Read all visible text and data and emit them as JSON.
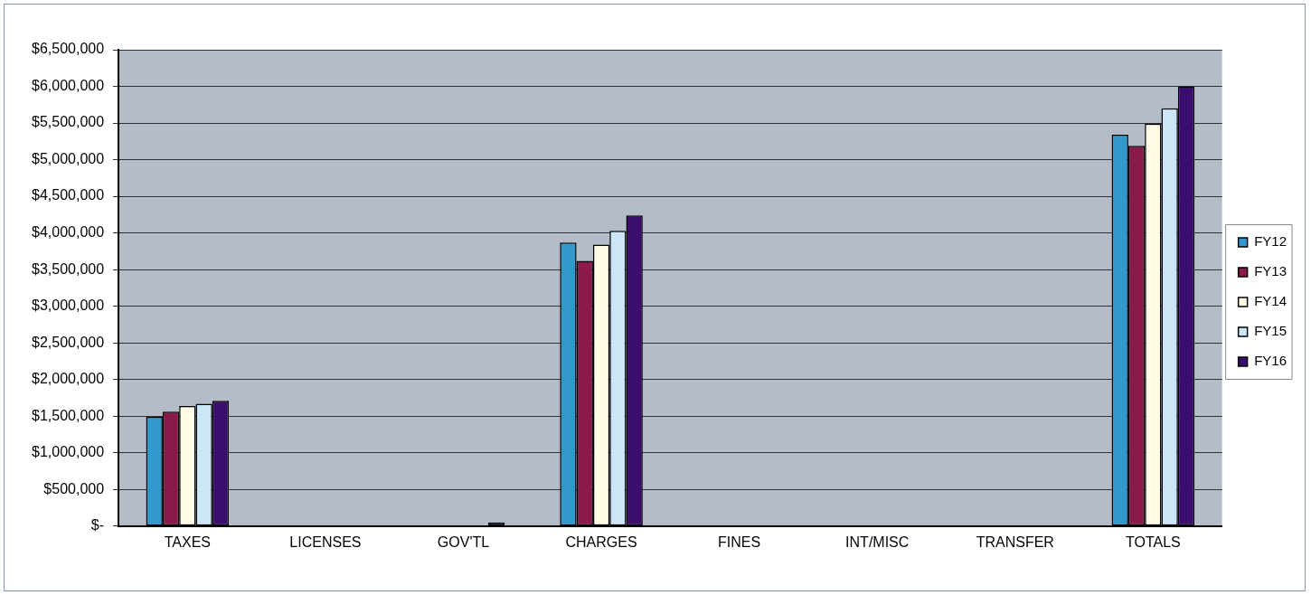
{
  "chart_data": {
    "type": "bar",
    "categories": [
      "TAXES",
      "LICENSES",
      "GOV'TL",
      "CHARGES",
      "FINES",
      "INT/MISC",
      "TRANSFER",
      "TOTALS"
    ],
    "series": [
      {
        "name": "FY12",
        "color": "#3399cc",
        "values": [
          1490000,
          0,
          0,
          3870000,
          0,
          0,
          0,
          5340000
        ]
      },
      {
        "name": "FY13",
        "color": "#8b1a4a",
        "values": [
          1560000,
          0,
          0,
          3620000,
          0,
          0,
          0,
          5190000
        ]
      },
      {
        "name": "FY14",
        "color": "#fffbe6",
        "values": [
          1640000,
          0,
          0,
          3840000,
          0,
          0,
          0,
          5490000
        ]
      },
      {
        "name": "FY15",
        "color": "#cce6f7",
        "values": [
          1670000,
          0,
          0,
          4030000,
          0,
          0,
          0,
          5700000
        ]
      },
      {
        "name": "FY16",
        "color": "#3a0d6e",
        "values": [
          1710000,
          0,
          50000,
          4240000,
          0,
          0,
          0,
          6000000
        ]
      }
    ],
    "ylim": [
      0,
      6500000
    ],
    "yticks": [
      {
        "value": 0,
        "label": "$-"
      },
      {
        "value": 500000,
        "label": "$500,000"
      },
      {
        "value": 1000000,
        "label": "$1,000,000"
      },
      {
        "value": 1500000,
        "label": "$1,500,000"
      },
      {
        "value": 2000000,
        "label": "$2,000,000"
      },
      {
        "value": 2500000,
        "label": "$2,500,000"
      },
      {
        "value": 3000000,
        "label": "$3,000,000"
      },
      {
        "value": 3500000,
        "label": "$3,500,000"
      },
      {
        "value": 4000000,
        "label": "$4,000,000"
      },
      {
        "value": 4500000,
        "label": "$4,500,000"
      },
      {
        "value": 5000000,
        "label": "$5,000,000"
      },
      {
        "value": 5500000,
        "label": "$5,500,000"
      },
      {
        "value": 6000000,
        "label": "$6,000,000"
      },
      {
        "value": 6500000,
        "label": "$6,500,000"
      }
    ],
    "grid": "y",
    "legend": "right"
  }
}
